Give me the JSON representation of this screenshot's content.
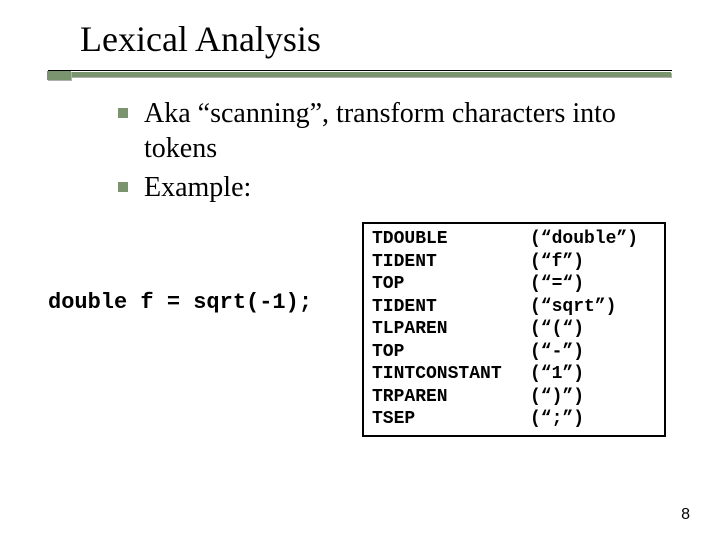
{
  "colors": {
    "accent": "#7a9470",
    "shadow": "#b0b0b0",
    "text": "#000000",
    "background": "#ffffff",
    "border": "#000000"
  },
  "title": "Lexical Analysis",
  "bullets": [
    "Aka “scanning”, transform characters into tokens",
    "Example:"
  ],
  "code_snippet": "double f = sqrt(-1);",
  "tokens": {
    "rows": [
      {
        "tok": "TDOUBLE",
        "val": "(“double”)"
      },
      {
        "tok": "TIDENT",
        "val": "(“f”)"
      },
      {
        "tok": "TOP",
        "val": "(“=“)"
      },
      {
        "tok": "TIDENT",
        "val": "(“sqrt”)"
      },
      {
        "tok": "TLPAREN",
        "val": "(“(“)"
      },
      {
        "tok": "TOP",
        "val": "(“-”)"
      },
      {
        "tok": "TINTCONSTANT",
        "val": "(“1”)"
      },
      {
        "tok": "TRPAREN",
        "val": "(“)”)"
      },
      {
        "tok": "TSEP",
        "val": "(“;”)"
      }
    ]
  },
  "page_number": "8",
  "fonts": {
    "title_size_pt": 36,
    "body_size_pt": 28,
    "mono_left_size_pt": 22,
    "mono_box_size_pt": 18,
    "page_num_size_pt": 16
  }
}
